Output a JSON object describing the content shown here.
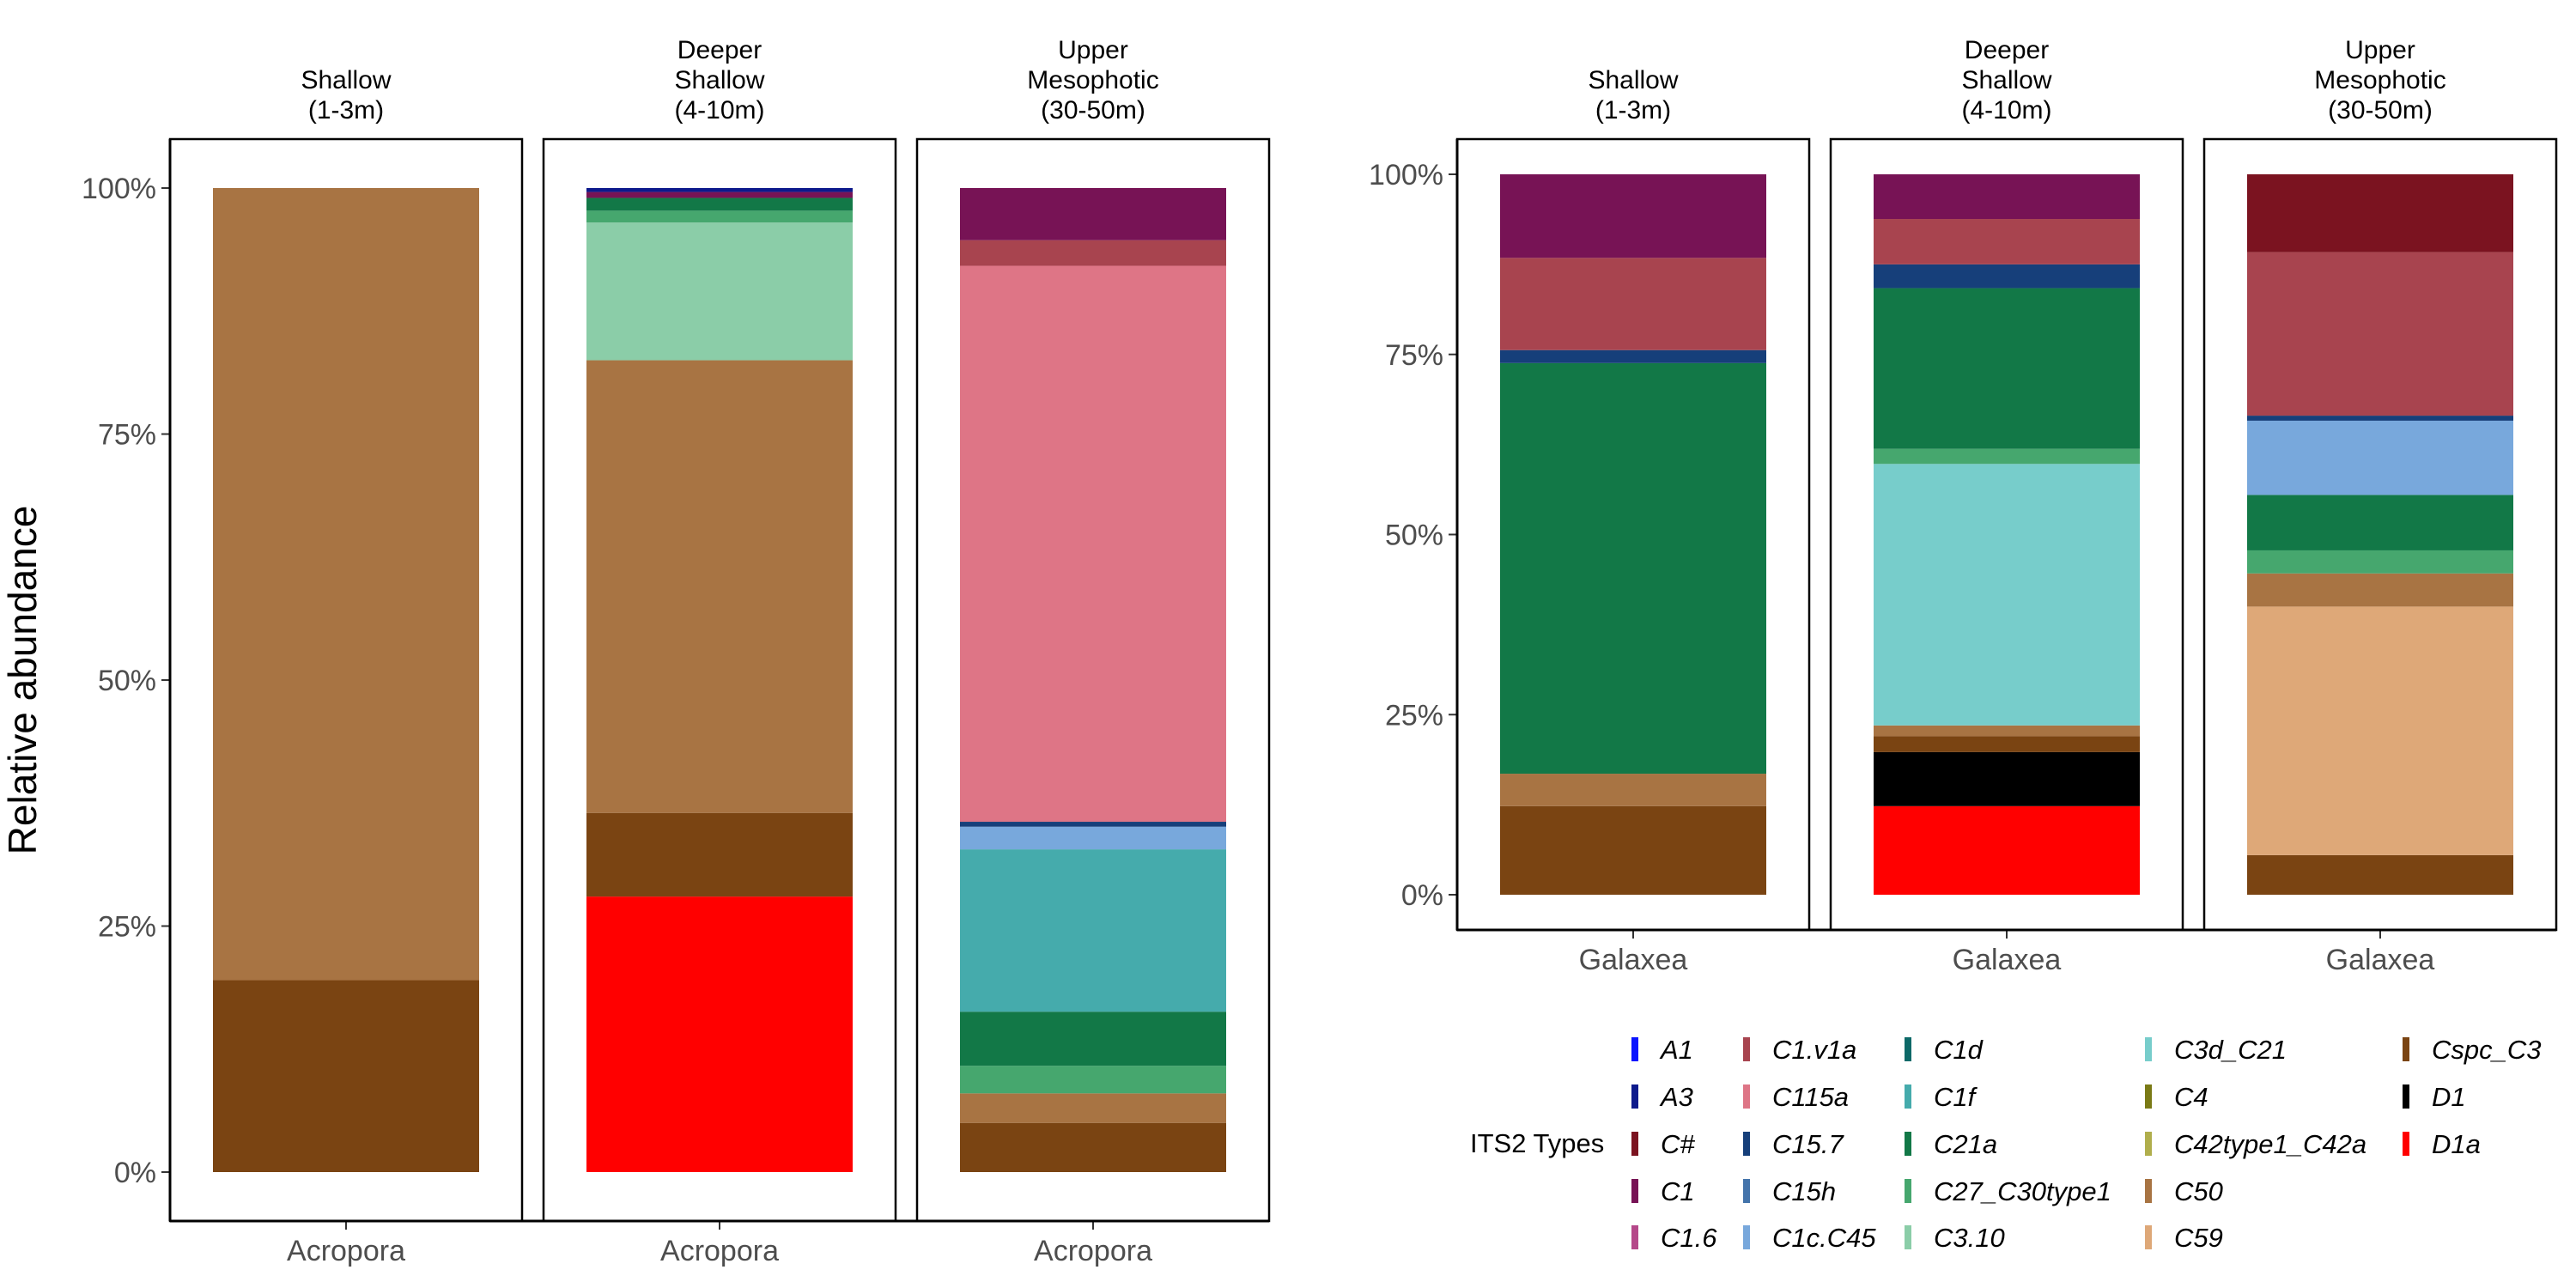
{
  "chart_data": [
    {
      "type": "bar",
      "stacked": true,
      "ylabel": "Relative abundance",
      "yticks": [
        "0%",
        "25%",
        "50%",
        "75%",
        "100%"
      ],
      "ylim": [
        0,
        100
      ],
      "x_category": "Acropora",
      "facets": [
        {
          "label": [
            "Shallow",
            "(1-3m)"
          ],
          "segments": [
            {
              "type": "Cspc_C3",
              "value": 19.5
            },
            {
              "type": "C50",
              "value": 80.5
            }
          ]
        },
        {
          "label": [
            "Deeper",
            "Shallow",
            "(4-10m)"
          ],
          "segments": [
            {
              "type": "D1a",
              "value": 28
            },
            {
              "type": "Cspc_C3",
              "value": 8.5
            },
            {
              "type": "C50",
              "value": 46
            },
            {
              "type": "C3.10",
              "value": 14
            },
            {
              "type": "C27_C30type1",
              "value": 1.2
            },
            {
              "type": "C21a",
              "value": 1.3
            },
            {
              "type": "C1",
              "value": 0.6
            },
            {
              "type": "A3",
              "value": 0.4
            }
          ]
        },
        {
          "label": [
            "Upper",
            "Mesophotic",
            "(30-50m)"
          ],
          "segments": [
            {
              "type": "Cspc_C3",
              "value": 5
            },
            {
              "type": "C50",
              "value": 3
            },
            {
              "type": "C27_C30type1",
              "value": 2.8
            },
            {
              "type": "C21a",
              "value": 5.5
            },
            {
              "type": "C1f",
              "value": 16.5
            },
            {
              "type": "C1c.C45",
              "value": 2.3
            },
            {
              "type": "C15.7",
              "value": 0.5
            },
            {
              "type": "C115a",
              "value": 56.5
            },
            {
              "type": "C1.v1a",
              "value": 2.6
            },
            {
              "type": "C1",
              "value": 5.3
            }
          ]
        }
      ]
    },
    {
      "type": "bar",
      "stacked": true,
      "yticks": [
        "0%",
        "25%",
        "50%",
        "75%",
        "100%"
      ],
      "ylim": [
        0,
        100
      ],
      "x_category": "Galaxea",
      "facets": [
        {
          "label": [
            "Shallow",
            "(1-3m)"
          ],
          "segments": [
            {
              "type": "Cspc_C3",
              "value": 12.3
            },
            {
              "type": "C50",
              "value": 4.5
            },
            {
              "type": "C21a",
              "value": 57
            },
            {
              "type": "C15.7",
              "value": 1.8
            },
            {
              "type": "C1.v1a",
              "value": 12.8
            },
            {
              "type": "C1",
              "value": 11.6
            }
          ]
        },
        {
          "label": [
            "Deeper",
            "Shallow",
            "(4-10m)"
          ],
          "segments": [
            {
              "type": "D1a",
              "value": 12.3
            },
            {
              "type": "D1",
              "value": 7.5
            },
            {
              "type": "Cspc_C3",
              "value": 2.2
            },
            {
              "type": "C50",
              "value": 1.5
            },
            {
              "type": "C3d_C21",
              "value": 36.3
            },
            {
              "type": "C27_C30type1",
              "value": 2.1
            },
            {
              "type": "C21a",
              "value": 22.3
            },
            {
              "type": "C15.7",
              "value": 3.3
            },
            {
              "type": "C1.v1a",
              "value": 6.3
            },
            {
              "type": "C1",
              "value": 6.2
            }
          ]
        },
        {
          "label": [
            "Upper",
            "Mesophotic",
            "(30-50m)"
          ],
          "segments": [
            {
              "type": "Cspc_C3",
              "value": 5.5
            },
            {
              "type": "C59",
              "value": 34.5
            },
            {
              "type": "C50",
              "value": 4.6
            },
            {
              "type": "C27_C30type1",
              "value": 3.2
            },
            {
              "type": "C21a",
              "value": 7.7
            },
            {
              "type": "C1c.C45",
              "value": 10.3
            },
            {
              "type": "C15.7",
              "value": 0.7
            },
            {
              "type": "C1.v1a",
              "value": 22.7
            },
            {
              "type": "C#",
              "value": 10.8
            }
          ]
        }
      ]
    }
  ],
  "legend": {
    "title": "ITS2 Types",
    "items": [
      {
        "label": "A1",
        "color": "#0a14ff"
      },
      {
        "label": "A3",
        "color": "#0d1a8c"
      },
      {
        "label": "C#",
        "color": "#7b1320"
      },
      {
        "label": "C1",
        "color": "#771355"
      },
      {
        "label": "C1.6",
        "color": "#b5488a"
      },
      {
        "label": "C1.v1a",
        "color": "#a8444f"
      },
      {
        "label": "C115a",
        "color": "#de7586"
      },
      {
        "label": "C15.7",
        "color": "#163f7a"
      },
      {
        "label": "C15h",
        "color": "#4474ab"
      },
      {
        "label": "C1c.C45",
        "color": "#78a8dc"
      },
      {
        "label": "C1d",
        "color": "#0d6968"
      },
      {
        "label": "C1f",
        "color": "#45abac"
      },
      {
        "label": "C21a",
        "color": "#127847"
      },
      {
        "label": "C27_C30type1",
        "color": "#46a76e"
      },
      {
        "label": "C3.10",
        "color": "#8bcda8"
      },
      {
        "label": "C3d_C21",
        "color": "#77cdcb"
      },
      {
        "label": "C4",
        "color": "#7a7a16"
      },
      {
        "label": "C42type1_C42a",
        "color": "#b0ae4c"
      },
      {
        "label": "C50",
        "color": "#a87443"
      },
      {
        "label": "C59",
        "color": "#dea878"
      },
      {
        "label": "Cspc_C3",
        "color": "#7a4412"
      },
      {
        "label": "D1",
        "color": "#000000"
      },
      {
        "label": "D1a",
        "color": "#ff0000"
      }
    ]
  }
}
